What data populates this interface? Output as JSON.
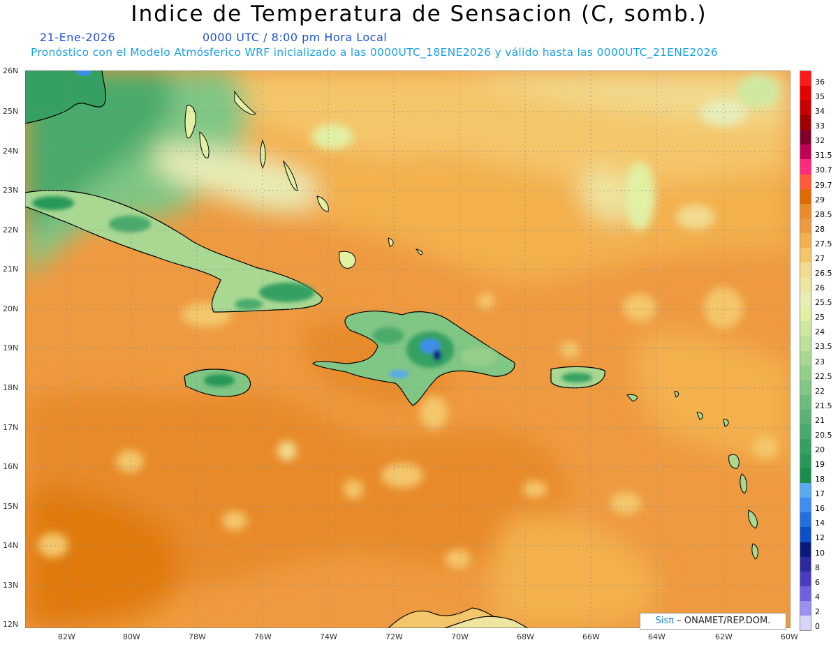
{
  "title": "Indice de Temperatura de Sensacion (C, somb.)",
  "date": "21-Ene-2026",
  "time": "0000 UTC / 8:00 pm Hora Local",
  "forecast_note": "Pronóstico con el Modelo Atmósferico WRF inicializado a las 0000UTC_18ENE2026 y válido hasta las  0000UTC_21ENE2026",
  "lat_labels": [
    "26N",
    "25N",
    "24N",
    "23N",
    "22N",
    "21N",
    "20N",
    "19N",
    "18N",
    "17N",
    "16N",
    "15N",
    "14N",
    "13N",
    "12N"
  ],
  "lon_labels": [
    "82W",
    "80W",
    "78W",
    "76W",
    "74W",
    "72W",
    "70W",
    "68W",
    "66W",
    "64W",
    "62W",
    "60W"
  ],
  "colorbar": [
    {
      "label": "36",
      "color": "#ff1a1a"
    },
    {
      "label": "35",
      "color": "#e60000"
    },
    {
      "label": "34",
      "color": "#c80000"
    },
    {
      "label": "33",
      "color": "#a00000"
    },
    {
      "label": "32",
      "color": "#82002a"
    },
    {
      "label": "31.5",
      "color": "#c00050"
    },
    {
      "label": "30.7",
      "color": "#ff2a78"
    },
    {
      "label": "29.7",
      "color": "#ff5a3a"
    },
    {
      "label": "29",
      "color": "#e06a00"
    },
    {
      "label": "28.5",
      "color": "#ea8a2a"
    },
    {
      "label": "28",
      "color": "#ee9a40"
    },
    {
      "label": "27.5",
      "color": "#f3b04e"
    },
    {
      "label": "27",
      "color": "#f4c66a"
    },
    {
      "label": "26.5",
      "color": "#f2da8e"
    },
    {
      "label": "26",
      "color": "#eee6a0"
    },
    {
      "label": "25.5",
      "color": "#e8ecb6"
    },
    {
      "label": "25",
      "color": "#e2f0a4"
    },
    {
      "label": "24",
      "color": "#cfe8a0"
    },
    {
      "label": "23.5",
      "color": "#bce29a"
    },
    {
      "label": "23",
      "color": "#a8d892"
    },
    {
      "label": "22.5",
      "color": "#94cf8a"
    },
    {
      "label": "22",
      "color": "#80c684"
    },
    {
      "label": "21.5",
      "color": "#6cbc7c"
    },
    {
      "label": "21",
      "color": "#5ab276"
    },
    {
      "label": "20.5",
      "color": "#48aa6c"
    },
    {
      "label": "20",
      "color": "#36a062"
    },
    {
      "label": "19",
      "color": "#269858"
    },
    {
      "label": "18",
      "color": "#188e4e"
    },
    {
      "label": "17",
      "color": "#5aa8f0"
    },
    {
      "label": "16",
      "color": "#3c8ef0"
    },
    {
      "label": "14",
      "color": "#2070e0"
    },
    {
      "label": "12",
      "color": "#0a50c8"
    },
    {
      "label": "10",
      "color": "#081a80"
    },
    {
      "label": "8",
      "color": "#2c2aa0"
    },
    {
      "label": "6",
      "color": "#4a3cc0"
    },
    {
      "label": "4",
      "color": "#7060e0"
    },
    {
      "label": "2",
      "color": "#9c90f0"
    },
    {
      "label": "0",
      "color": "#d8d6f8"
    }
  ],
  "credit": {
    "sis": "Sisπ",
    "org": "– ONAMET/REP.DOM."
  }
}
